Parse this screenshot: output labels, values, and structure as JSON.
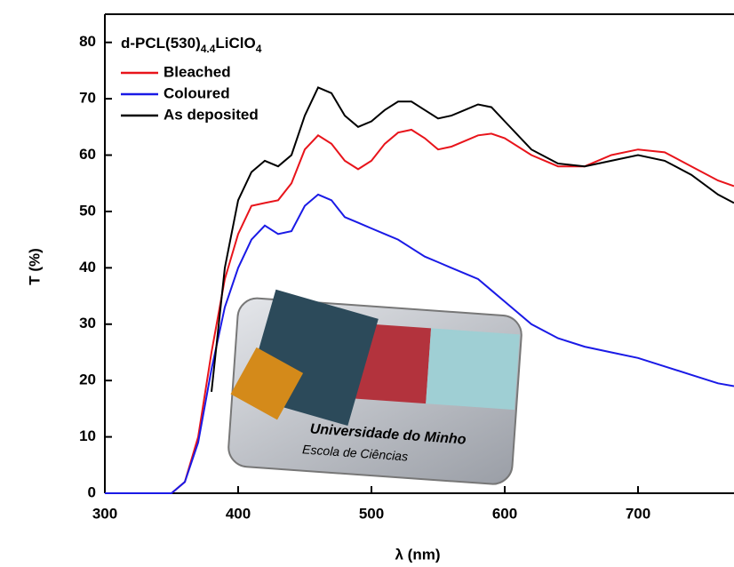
{
  "chart_data": {
    "type": "line",
    "x_label": "λ (nm)",
    "y_label": "T (%)",
    "legend_title": {
      "main": "d-PCL(530)",
      "sub": "4.4",
      "main2": "LiClO",
      "sub2": "4"
    },
    "x": [
      300,
      350,
      360,
      370,
      380,
      390,
      400,
      410,
      420,
      430,
      440,
      450,
      460,
      470,
      480,
      490,
      500,
      510,
      520,
      530,
      540,
      550,
      560,
      570,
      580,
      590,
      600,
      620,
      640,
      660,
      680,
      700,
      720,
      740,
      760,
      772
    ],
    "series": [
      {
        "name": "Bleached",
        "color": "#e8141b",
        "values": [
          0,
          0,
          2,
          10,
          25,
          38,
          46,
          51,
          51.5,
          52,
          55,
          61,
          63.5,
          62,
          59,
          57.5,
          59,
          62,
          64,
          64.5,
          63,
          61,
          61.5,
          62.5,
          63.5,
          63.8,
          63,
          60,
          58,
          58,
          60,
          61,
          60.5,
          58,
          55.5,
          54.5
        ]
      },
      {
        "name": "Coloured",
        "color": "#1a1ae6",
        "values": [
          0,
          0,
          2,
          9,
          22,
          33,
          40,
          45,
          47.5,
          46,
          46.5,
          51,
          53,
          52,
          49,
          48,
          47,
          46,
          45,
          43.5,
          42,
          41,
          40,
          39,
          38,
          36,
          34,
          30,
          27.5,
          26,
          25,
          24,
          22.5,
          21,
          19.5,
          19
        ]
      },
      {
        "name": "As deposited",
        "color": "#000000",
        "values": [
          null,
          null,
          null,
          null,
          18,
          40,
          52,
          57,
          59,
          58,
          60,
          67,
          72,
          71,
          67,
          65,
          66,
          68,
          69.5,
          69.5,
          68,
          66.5,
          67,
          68,
          69,
          68.5,
          66,
          61,
          58.5,
          58,
          59,
          60,
          59,
          56.5,
          53,
          51.5
        ]
      }
    ],
    "xlim": [
      300,
      772
    ],
    "ylim": [
      0,
      85
    ],
    "xticks": [
      300,
      400,
      500,
      600,
      700
    ],
    "yticks": [
      0,
      10,
      20,
      30,
      40,
      50,
      60,
      70,
      80
    ],
    "inset": {
      "line1": "Universidade do Minho",
      "line2": "Escola de Ciências"
    }
  }
}
